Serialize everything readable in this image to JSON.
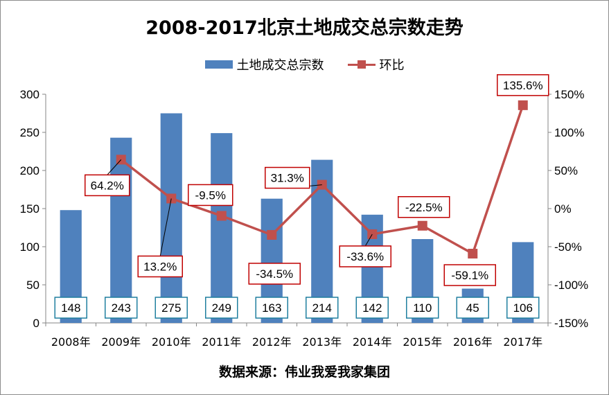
{
  "title": "2008-2017北京土地成交总宗数走势",
  "source": "数据来源：伟业我爱我家集团",
  "colors": {
    "bar": "#4f81bd",
    "line": "#c0504d",
    "bar_label_border": "#1f7f9f",
    "line_label_border": "#c00000"
  },
  "chart_data": {
    "type": "bar",
    "categories": [
      "2008年",
      "2009年",
      "2010年",
      "2011年",
      "2012年",
      "2013年",
      "2014年",
      "2015年",
      "2016年",
      "2017年"
    ],
    "series": [
      {
        "name": "土地成交总宗数",
        "type": "bar",
        "axis": "left",
        "values": [
          148,
          243,
          275,
          249,
          163,
          214,
          142,
          110,
          45,
          106
        ]
      },
      {
        "name": "环比",
        "type": "line",
        "axis": "right",
        "values": [
          null,
          64.2,
          13.2,
          -9.5,
          -34.5,
          31.3,
          -33.6,
          -22.5,
          -59.1,
          135.6
        ]
      }
    ],
    "bar_labels": [
      "148",
      "243",
      "275",
      "249",
      "163",
      "214",
      "142",
      "110",
      "45",
      "106"
    ],
    "line_labels": [
      "",
      "64.2%",
      "13.2%",
      "-9.5%",
      "-34.5%",
      "31.3%",
      "-33.6%",
      "-22.5%",
      "-59.1%",
      "135.6%"
    ],
    "y_left": {
      "min": 0,
      "max": 300,
      "step": 50,
      "ticks": [
        "0",
        "50",
        "100",
        "150",
        "200",
        "250",
        "300"
      ]
    },
    "y_right": {
      "min": -150,
      "max": 150,
      "step": 50,
      "ticks": [
        "-150%",
        "-100%",
        "-50%",
        "0%",
        "50%",
        "100%",
        "150%"
      ]
    },
    "legend_position": "top",
    "grid": false
  }
}
